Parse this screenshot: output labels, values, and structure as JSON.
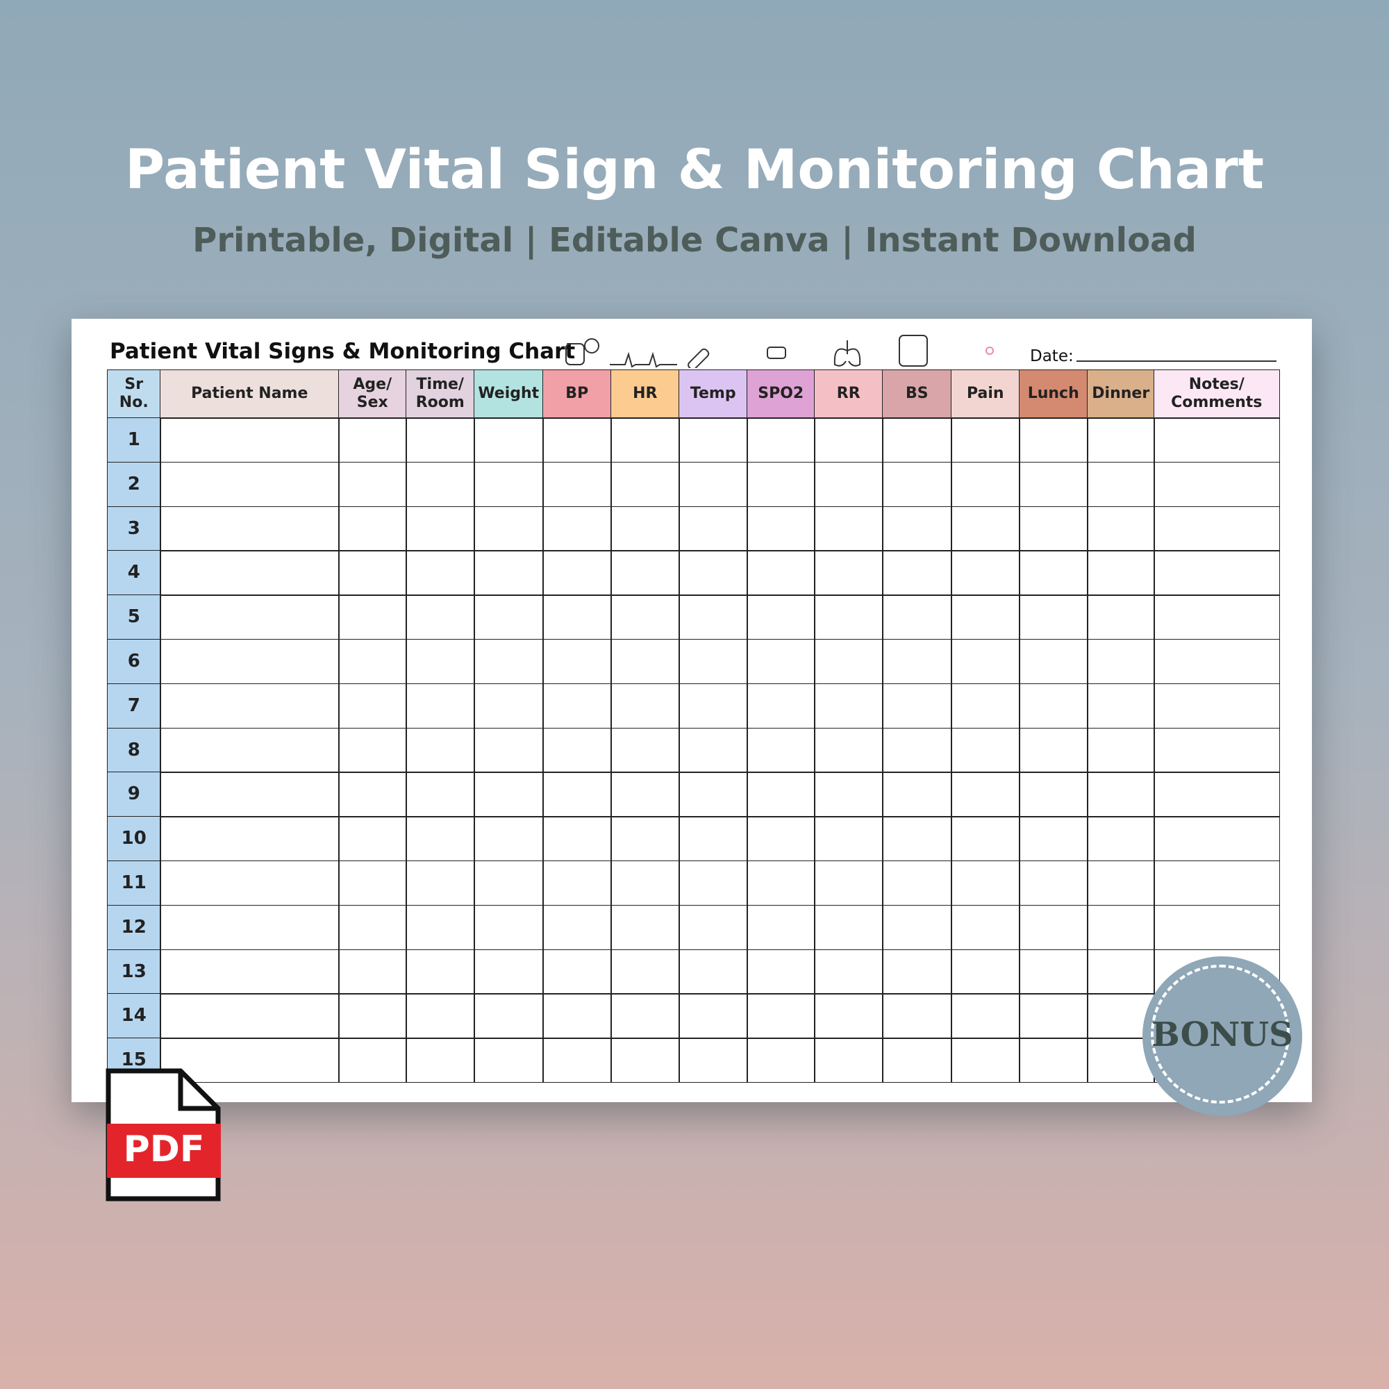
{
  "header": {
    "title": "Patient Vital Sign & Monitoring Chart",
    "subtitle": "Printable, Digital | Editable Canva | Instant Download"
  },
  "sheet": {
    "title": "Patient Vital Signs & Monitoring Chart",
    "date_label": "Date:",
    "columns": [
      {
        "label": "Sr No.",
        "color": "#bfdcef"
      },
      {
        "label": "Patient Name",
        "color": "#ede0dc"
      },
      {
        "label": "Age/\nSex",
        "color": "#e6d3df"
      },
      {
        "label": "Time/\nRoom",
        "color": "#e2d2e0"
      },
      {
        "label": "Weight",
        "color": "#b3e3e0"
      },
      {
        "label": "BP",
        "color": "#f2a0a8"
      },
      {
        "label": "HR",
        "color": "#fccb90"
      },
      {
        "label": "Temp",
        "color": "#dcc4f2"
      },
      {
        "label": "SPO2",
        "color": "#dfa2d5"
      },
      {
        "label": "RR",
        "color": "#f5c0c5"
      },
      {
        "label": "BS",
        "color": "#d9a5a8"
      },
      {
        "label": "Pain",
        "color": "#f2d5d0"
      },
      {
        "label": "Lunch",
        "color": "#d48a70"
      },
      {
        "label": "Dinner",
        "color": "#d9b08a"
      },
      {
        "label": "Notes/\nComments",
        "color": "#fce8f5"
      }
    ],
    "rows": [
      "1",
      "2",
      "3",
      "4",
      "5",
      "6",
      "7",
      "8",
      "9",
      "10",
      "11",
      "12",
      "13",
      "14",
      "15"
    ]
  },
  "badge": "BONUS",
  "file_icon": "PDF"
}
